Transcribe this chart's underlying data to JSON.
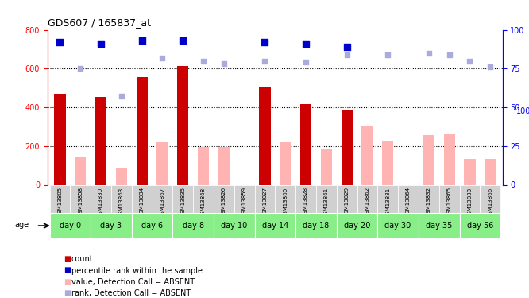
{
  "title": "GDS607 / 165837_at",
  "samples": [
    "GSM13805",
    "GSM13858",
    "GSM13830",
    "GSM13863",
    "GSM13834",
    "GSM13867",
    "GSM13835",
    "GSM13868",
    "GSM13826",
    "GSM13859",
    "GSM13827",
    "GSM13860",
    "GSM13828",
    "GSM13861",
    "GSM13829",
    "GSM13862",
    "GSM13831",
    "GSM13864",
    "GSM13832",
    "GSM13865",
    "GSM13833",
    "GSM13866"
  ],
  "days": [
    "day 0",
    "day 3",
    "day 6",
    "day 8",
    "day 10",
    "day 14",
    "day 18",
    "day 20",
    "day 30",
    "day 35",
    "day 56"
  ],
  "day_spans": [
    {
      "day": "day 0",
      "start": 0,
      "end": 2
    },
    {
      "day": "day 3",
      "start": 2,
      "end": 4
    },
    {
      "day": "day 6",
      "start": 4,
      "end": 6
    },
    {
      "day": "day 8",
      "start": 6,
      "end": 8
    },
    {
      "day": "day 10",
      "start": 8,
      "end": 10
    },
    {
      "day": "day 14",
      "start": 10,
      "end": 12
    },
    {
      "day": "day 18",
      "start": 12,
      "end": 14
    },
    {
      "day": "day 20",
      "start": 14,
      "end": 16
    },
    {
      "day": "day 30",
      "start": 16,
      "end": 18
    },
    {
      "day": "day 35",
      "start": 18,
      "end": 20
    },
    {
      "day": "day 56",
      "start": 20,
      "end": 22
    }
  ],
  "count_values": [
    470,
    null,
    455,
    null,
    555,
    null,
    615,
    null,
    null,
    null,
    505,
    null,
    415,
    null,
    385,
    null,
    null,
    null,
    null,
    null,
    null,
    null
  ],
  "absent_values": [
    null,
    140,
    null,
    90,
    null,
    220,
    null,
    195,
    195,
    null,
    null,
    220,
    null,
    185,
    null,
    300,
    225,
    null,
    255,
    260,
    135,
    135
  ],
  "rank_present": [
    null,
    null,
    null,
    null,
    null,
    null,
    null,
    null,
    null,
    null,
    null,
    null,
    null,
    null,
    null,
    null,
    null,
    null,
    null,
    null,
    null,
    null
  ],
  "percentile_present": [
    92,
    null,
    91,
    null,
    93,
    null,
    93,
    null,
    null,
    null,
    92,
    null,
    91,
    null,
    89,
    null,
    null,
    null,
    null,
    null,
    null,
    null
  ],
  "percentile_absent": [
    null,
    75,
    null,
    57,
    null,
    82,
    null,
    80,
    78,
    null,
    80,
    null,
    79,
    null,
    84,
    null,
    84,
    null,
    85,
    84,
    80,
    76
  ],
  "ylim_left": [
    0,
    800
  ],
  "ylim_right": [
    0,
    100
  ],
  "yticks_left": [
    0,
    200,
    400,
    600,
    800
  ],
  "yticks_right": [
    0,
    25,
    50,
    75,
    100
  ],
  "bar_color_present": "#cc0000",
  "bar_color_absent": "#ffb3b3",
  "dot_color_present": "#0000cc",
  "dot_color_absent": "#aaaadd",
  "bg_color_chart": "#ffffff",
  "bg_color_ticker_gray": "#d0d0d0",
  "bg_color_day_green": "#88ee88",
  "legend_items": [
    {
      "color": "#cc0000",
      "label": "count"
    },
    {
      "color": "#0000cc",
      "label": "percentile rank within the sample"
    },
    {
      "color": "#ffb3b3",
      "label": "value, Detection Call = ABSENT"
    },
    {
      "color": "#aaaadd",
      "label": "rank, Detection Call = ABSENT"
    }
  ]
}
